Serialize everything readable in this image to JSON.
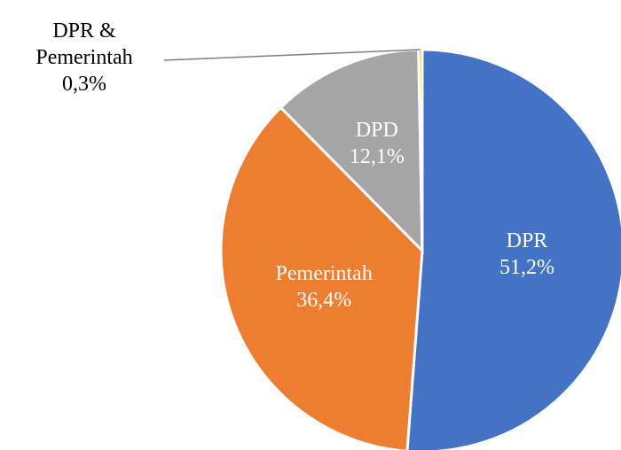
{
  "chart_data": {
    "type": "pie",
    "categories": [
      "DPR",
      "Pemerintah",
      "DPD",
      "DPR & Pemerintah"
    ],
    "values": [
      51.2,
      36.4,
      12.1,
      0.3
    ],
    "value_labels": [
      "51,2%",
      "36,4%",
      "12,1%",
      "0,3%"
    ],
    "colors": [
      "#4472c4",
      "#ed7d31",
      "#a5a5a5",
      "#ffc000"
    ]
  }
}
